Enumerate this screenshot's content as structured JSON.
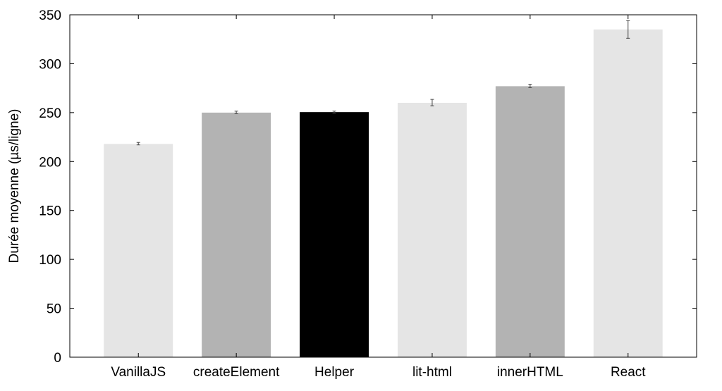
{
  "chart_data": {
    "type": "bar",
    "title": "",
    "xlabel": "",
    "ylabel": "Durée moyenne (µs/ligne)",
    "ylim": [
      0,
      350
    ],
    "yticks": [
      0,
      50,
      100,
      150,
      200,
      250,
      300,
      350
    ],
    "grid": false,
    "categories": [
      "VanillaJS",
      "createElement",
      "Helper",
      "lit-html",
      "innerHTML",
      "React"
    ],
    "values": [
      218,
      250,
      250.5,
      260,
      277,
      335
    ],
    "error_low": [
      217,
      249,
      249.5,
      257,
      275.5,
      326
    ],
    "error_high": [
      219.5,
      251.5,
      251.5,
      263.5,
      279,
      344
    ],
    "bar_colors": [
      "#e5e5e5",
      "#b3b3b3",
      "#000000",
      "#e5e5e5",
      "#b3b3b3",
      "#e5e5e5"
    ]
  }
}
